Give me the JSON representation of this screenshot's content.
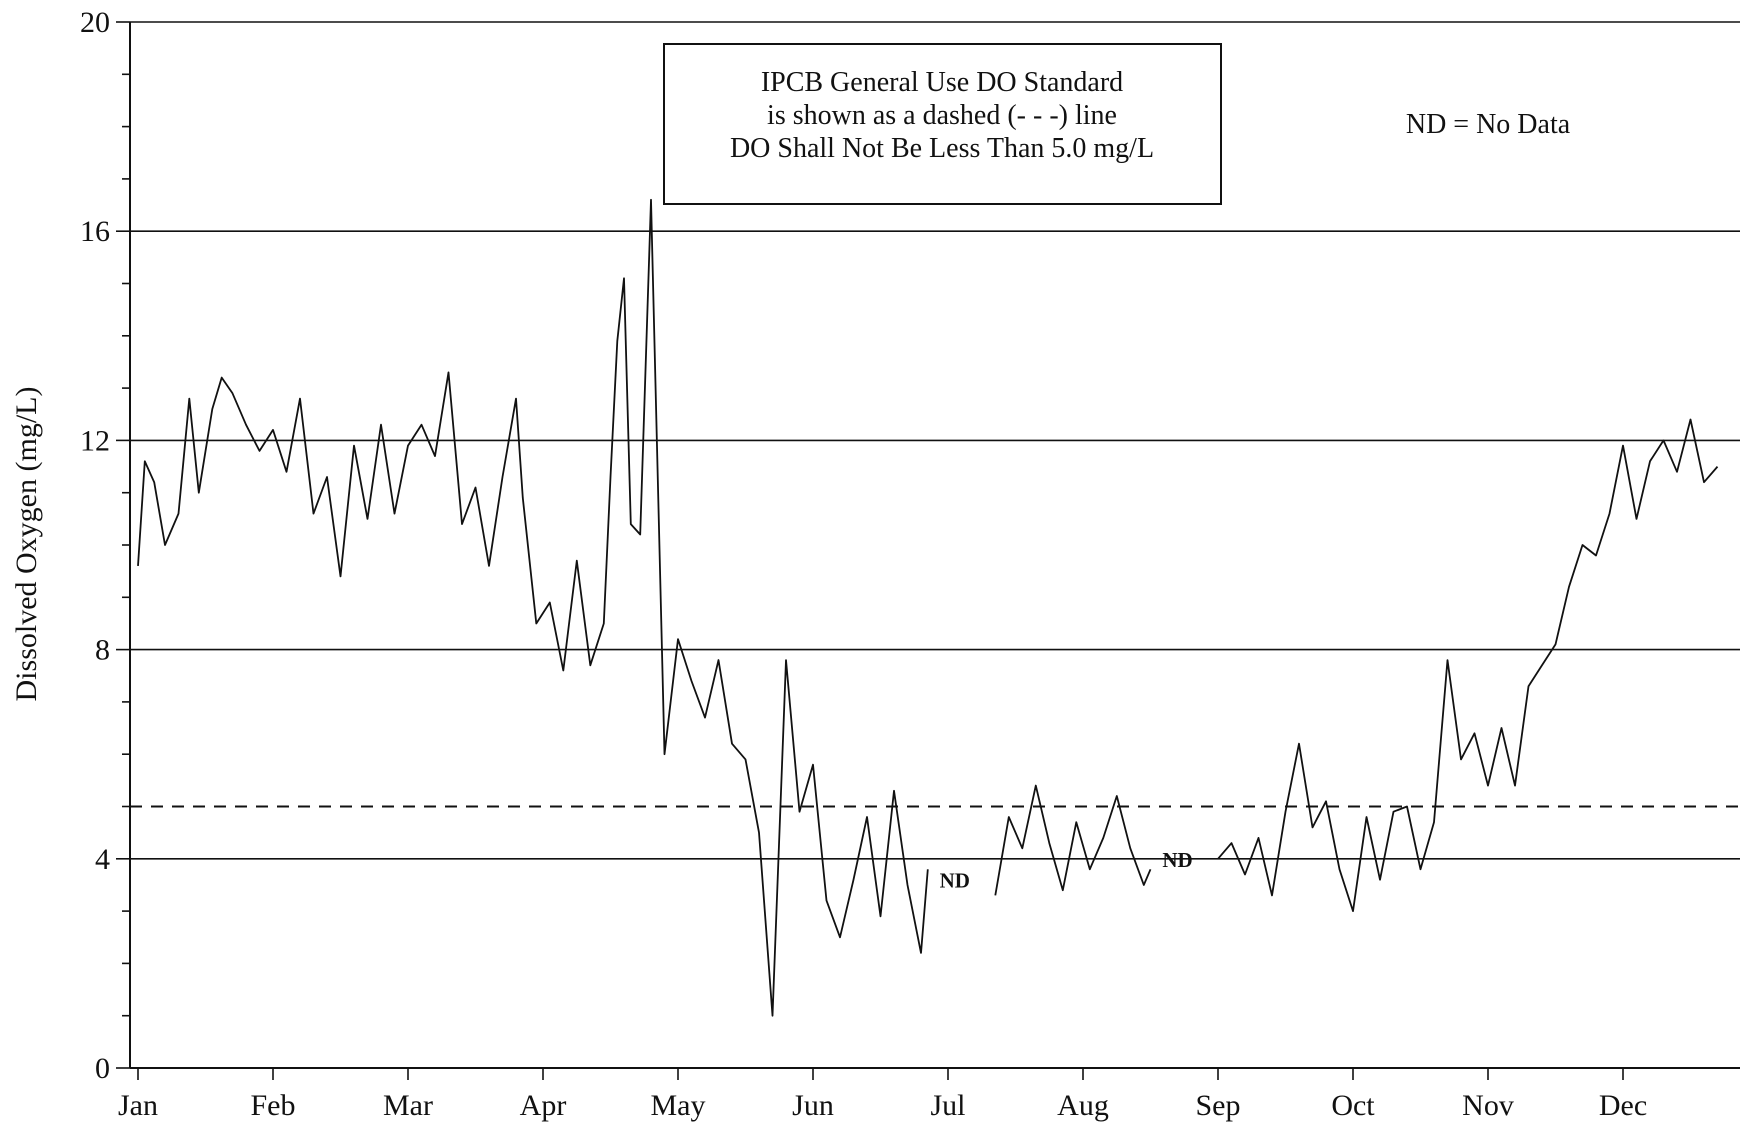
{
  "chart_data": {
    "type": "line",
    "title": "",
    "xlabel": "",
    "ylabel": "Dissolved Oxygen (mg/L)",
    "ylim": [
      0,
      20
    ],
    "yticks": [
      0,
      4,
      8,
      12,
      16,
      20
    ],
    "grid": "horizontal",
    "months": [
      "Jan",
      "Feb",
      "Mar",
      "Apr",
      "May",
      "Jun",
      "Jul",
      "Aug",
      "Sep",
      "Oct",
      "Nov",
      "Dec"
    ],
    "standard": {
      "value": 5.0,
      "style": "dashed"
    },
    "annotation_box": {
      "lines": [
        "IPCB General Use DO Standard",
        "is shown as a dashed (- - -) line",
        "DO Shall Not Be Less Than 5.0 mg/L"
      ]
    },
    "legend_note": "ND = No Data",
    "nd_labels": [
      {
        "text": "ND",
        "month": 6.05,
        "value": 3.6
      },
      {
        "text": "ND",
        "month": 7.7,
        "value": 4.0
      }
    ],
    "series": [
      {
        "gaps": [
          [
            5.85,
            6.35
          ],
          [
            7.5,
            8.0
          ]
        ],
        "x": [
          0.0,
          0.05,
          0.12,
          0.2,
          0.3,
          0.38,
          0.45,
          0.55,
          0.62,
          0.7,
          0.8,
          0.9,
          1.0,
          1.1,
          1.2,
          1.3,
          1.4,
          1.5,
          1.6,
          1.7,
          1.8,
          1.9,
          2.0,
          2.1,
          2.2,
          2.3,
          2.4,
          2.5,
          2.6,
          2.7,
          2.8,
          2.85,
          2.95,
          3.05,
          3.15,
          3.25,
          3.35,
          3.45,
          3.5,
          3.55,
          3.6,
          3.65,
          3.72,
          3.8,
          3.9,
          4.0,
          4.1,
          4.2,
          4.3,
          4.4,
          4.5,
          4.6,
          4.7,
          4.8,
          4.9,
          5.0,
          5.1,
          5.2,
          5.3,
          5.4,
          5.5,
          5.6,
          5.7,
          5.8,
          5.85,
          6.35,
          6.45,
          6.55,
          6.65,
          6.75,
          6.85,
          6.95,
          7.05,
          7.15,
          7.25,
          7.35,
          7.45,
          7.5,
          8.0,
          8.1,
          8.2,
          8.3,
          8.4,
          8.5,
          8.6,
          8.7,
          8.8,
          8.9,
          9.0,
          9.1,
          9.2,
          9.3,
          9.4,
          9.5,
          9.6,
          9.7,
          9.8,
          9.9,
          10.0,
          10.1,
          10.2,
          10.3,
          10.4,
          10.5,
          10.6,
          10.7,
          10.8,
          10.9,
          11.0,
          11.1,
          11.2,
          11.3,
          11.4,
          11.5,
          11.6,
          11.7
        ],
        "y": [
          9.6,
          11.6,
          11.2,
          10.0,
          10.6,
          12.8,
          11.0,
          12.6,
          13.2,
          12.9,
          12.3,
          11.8,
          12.2,
          11.4,
          12.8,
          10.6,
          11.3,
          9.4,
          11.9,
          10.5,
          12.3,
          10.6,
          11.9,
          12.3,
          11.7,
          13.3,
          10.4,
          11.1,
          9.6,
          11.3,
          12.8,
          10.9,
          8.5,
          8.9,
          7.6,
          9.7,
          7.7,
          8.5,
          11.3,
          13.9,
          15.1,
          10.4,
          10.2,
          16.6,
          6.0,
          8.2,
          7.4,
          6.7,
          7.8,
          6.2,
          5.9,
          4.5,
          1.0,
          7.8,
          4.9,
          5.8,
          3.2,
          2.5,
          3.6,
          4.8,
          2.9,
          5.3,
          3.5,
          2.2,
          3.8,
          3.3,
          4.8,
          4.2,
          5.4,
          4.3,
          3.4,
          4.7,
          3.8,
          4.4,
          5.2,
          4.2,
          3.5,
          3.8,
          4.0,
          4.3,
          3.7,
          4.4,
          3.3,
          4.9,
          6.2,
          4.6,
          5.1,
          3.8,
          3.0,
          4.8,
          3.6,
          4.9,
          5.0,
          3.8,
          4.7,
          7.8,
          5.9,
          6.4,
          5.4,
          6.5,
          5.4,
          7.3,
          7.7,
          8.1,
          9.2,
          10.0,
          9.8,
          10.6,
          11.9,
          10.5,
          11.6,
          12.0,
          11.4,
          12.4,
          11.2,
          11.5
        ]
      }
    ]
  }
}
